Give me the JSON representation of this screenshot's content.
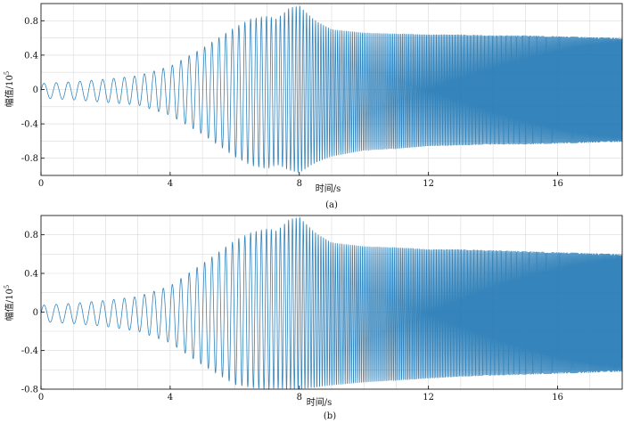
{
  "chart_data": [
    {
      "type": "line",
      "panel_label": "(a)",
      "xlabel": "时间/s",
      "ylabel": "幅值/10",
      "ylabel_exponent": "5",
      "xlim": [
        0,
        18
      ],
      "ylim": [
        -1.0,
        1.0
      ],
      "xticks": [
        0,
        4,
        8,
        12,
        16
      ],
      "yticks": [
        -0.8,
        -0.4,
        0,
        0.4,
        0.8
      ],
      "ytick_labels": [
        "-0.8",
        "-0.4",
        "0",
        "0.4",
        "0.8"
      ],
      "grid": true,
      "series_color": "#1f77b4",
      "envelope": {
        "t": [
          0,
          1,
          2,
          3,
          4,
          5,
          6,
          6.5,
          7,
          7.3,
          7.7,
          8,
          8.5,
          9,
          10,
          11,
          12,
          13,
          14,
          15,
          16,
          17,
          18
        ],
        "upper": [
          0.07,
          0.09,
          0.12,
          0.16,
          0.27,
          0.48,
          0.72,
          0.82,
          0.85,
          0.82,
          0.95,
          0.97,
          0.8,
          0.7,
          0.66,
          0.65,
          0.64,
          0.64,
          0.63,
          0.63,
          0.62,
          0.61,
          0.6
        ],
        "lower": [
          -0.1,
          -0.12,
          -0.15,
          -0.18,
          -0.3,
          -0.52,
          -0.78,
          -0.88,
          -0.92,
          -0.87,
          -0.94,
          -0.97,
          -0.85,
          -0.78,
          -0.71,
          -0.69,
          -0.66,
          -0.65,
          -0.64,
          -0.64,
          -0.63,
          -0.62,
          -0.61
        ]
      },
      "frequency": {
        "t": [
          0,
          2,
          4,
          6,
          7,
          8,
          9,
          18
        ],
        "hz": [
          2.6,
          2.9,
          3.6,
          5.0,
          6.5,
          9.0,
          14,
          40
        ]
      }
    },
    {
      "type": "line",
      "panel_label": "(b)",
      "xlabel": "时间/s",
      "ylabel": "幅值/10",
      "ylabel_exponent": "5",
      "xlim": [
        0,
        18
      ],
      "ylim": [
        -0.8,
        1.0
      ],
      "xticks": [
        0,
        4,
        8,
        12,
        16
      ],
      "yticks": [
        -0.8,
        -0.4,
        0,
        0.4,
        0.8
      ],
      "ytick_labels": [
        "-0.8",
        "-0.4",
        "0",
        "0.4",
        "0.8"
      ],
      "grid": true,
      "series_color": "#1f77b4",
      "envelope": {
        "t": [
          0,
          1,
          2,
          3,
          4,
          5,
          6,
          6.5,
          7,
          7.3,
          7.7,
          8,
          8.5,
          9,
          10,
          11,
          12,
          13,
          14,
          15,
          16,
          17,
          18
        ],
        "upper": [
          0.07,
          0.09,
          0.12,
          0.16,
          0.27,
          0.5,
          0.74,
          0.82,
          0.86,
          0.84,
          0.96,
          0.98,
          0.82,
          0.72,
          0.68,
          0.67,
          0.65,
          0.65,
          0.64,
          0.63,
          0.62,
          0.61,
          0.6
        ],
        "lower": [
          -0.1,
          -0.12,
          -0.15,
          -0.2,
          -0.32,
          -0.55,
          -0.75,
          -0.78,
          -0.8,
          -0.79,
          -0.8,
          -0.8,
          -0.78,
          -0.76,
          -0.73,
          -0.71,
          -0.69,
          -0.67,
          -0.66,
          -0.65,
          -0.64,
          -0.63,
          -0.62
        ]
      },
      "frequency": {
        "t": [
          0,
          2,
          4,
          6,
          7,
          8,
          9,
          18
        ],
        "hz": [
          2.6,
          2.9,
          3.6,
          5.0,
          6.5,
          9.0,
          14,
          40
        ]
      }
    }
  ]
}
